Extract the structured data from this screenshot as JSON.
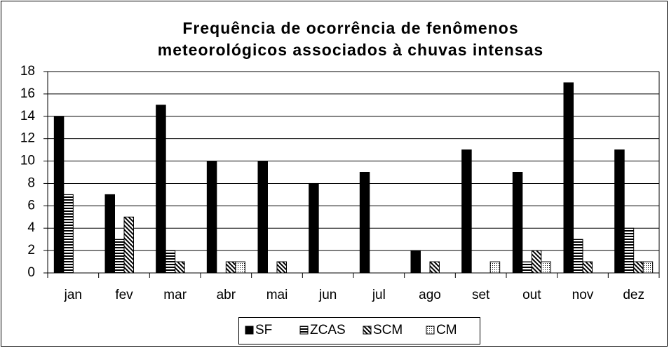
{
  "chart_data": {
    "type": "bar",
    "title": [
      "Frequência de ocorrência de fenômenos",
      "meteorológicos associados à chuvas  intensas"
    ],
    "categories": [
      "jan",
      "fev",
      "mar",
      "abr",
      "mai",
      "jun",
      "jul",
      "ago",
      "set",
      "out",
      "nov",
      "dez"
    ],
    "series": [
      {
        "name": "SF",
        "color": "#000000",
        "pattern": "solid",
        "values": [
          14,
          7,
          15,
          10,
          10,
          8,
          9,
          2,
          11,
          9,
          17,
          11
        ]
      },
      {
        "name": "ZCAS",
        "color": "#000000",
        "pattern": "horizontal",
        "values": [
          7,
          3,
          2,
          0,
          0,
          0,
          0,
          0,
          0,
          1,
          3,
          4
        ]
      },
      {
        "name": "SCM",
        "color": "#000000",
        "pattern": "diagonal",
        "values": [
          0,
          5,
          1,
          1,
          1,
          0,
          0,
          1,
          0,
          2,
          1,
          1
        ]
      },
      {
        "name": "CM",
        "color": "#000000",
        "pattern": "dotted",
        "values": [
          0,
          0,
          0,
          1,
          0,
          0,
          0,
          0,
          1,
          1,
          0,
          1
        ]
      }
    ],
    "ylim": [
      0,
      18
    ],
    "yticks": [
      0,
      2,
      4,
      6,
      8,
      10,
      12,
      14,
      16,
      18
    ],
    "grid": true,
    "legend": "bottom"
  }
}
